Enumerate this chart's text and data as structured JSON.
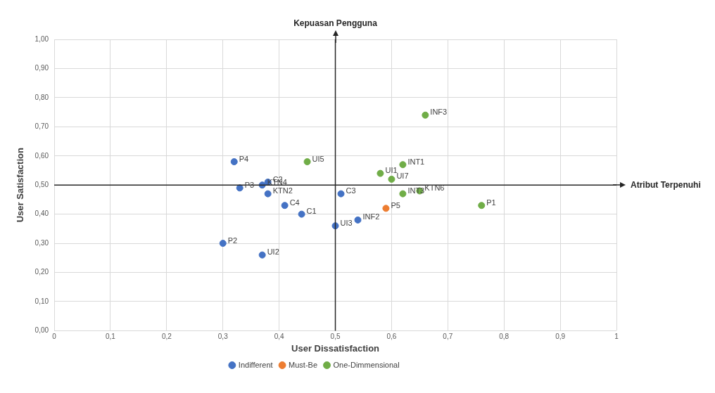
{
  "chart_data": {
    "type": "scatter",
    "xlabel": "User Dissatisfaction",
    "ylabel": "User Satisfaction",
    "xlim": [
      0,
      1
    ],
    "ylim": [
      0,
      1
    ],
    "xticks": [
      0,
      {
        "value": 0.1,
        "label": "0,1"
      },
      {
        "value": 0.2,
        "label": "0,2"
      },
      {
        "value": 0.3,
        "label": "0,3"
      },
      {
        "value": 0.4,
        "label": "0,4"
      },
      {
        "value": 0.5,
        "label": "0,5"
      },
      {
        "value": 0.6,
        "label": "0,6"
      },
      {
        "value": 0.7,
        "label": "0,7"
      },
      {
        "value": 0.8,
        "label": "0,8"
      },
      {
        "value": 0.9,
        "label": "0,9"
      },
      1
    ],
    "yticks": [
      {
        "value": 0,
        "label": "0,00"
      },
      {
        "value": 0.1,
        "label": "0,10"
      },
      {
        "value": 0.2,
        "label": "0,20"
      },
      {
        "value": 0.3,
        "label": "0,30"
      },
      {
        "value": 0.4,
        "label": "0,40"
      },
      {
        "value": 0.5,
        "label": "0,50"
      },
      {
        "value": 0.6,
        "label": "0,60"
      },
      {
        "value": 0.7,
        "label": "0,70"
      },
      {
        "value": 0.8,
        "label": "0,80"
      },
      {
        "value": 0.9,
        "label": "0,90"
      },
      {
        "value": 1,
        "label": "1,00"
      }
    ],
    "grid": true,
    "legend": "bottom",
    "marker": "circle",
    "series": [
      {
        "name": "Indifferent",
        "color": "#4472c4",
        "x": [
          0.32,
          0.33,
          0.37,
          0.38,
          0.38,
          0.41,
          0.44,
          0.51,
          0.5,
          0.54,
          0.3,
          0.37
        ],
        "values": [
          0.58,
          0.49,
          0.5,
          0.51,
          0.47,
          0.43,
          0.4,
          0.47,
          0.36,
          0.38,
          0.3,
          0.26
        ]
      },
      {
        "name": "Must-Be",
        "color": "#ed7d31",
        "x": [
          0.59
        ],
        "values": [
          0.42
        ]
      },
      {
        "name": "One-Dimmensional",
        "color": "#70ad47",
        "x": [
          0.45,
          0.66,
          0.62,
          0.58,
          0.6,
          0.62,
          0.65,
          0.76
        ],
        "values": [
          0.58,
          0.74,
          0.57,
          0.54,
          0.52,
          0.47,
          0.48,
          0.43
        ]
      }
    ],
    "ref_lines": [
      {
        "axis": "x",
        "value": 0.5,
        "label": "Kepuasan Pengguna",
        "color": "#262626"
      },
      {
        "axis": "y",
        "value": 0.5,
        "label": "Atribut Terpenuhi",
        "color": "#262626"
      }
    ],
    "annotations": [
      {
        "text": "P4",
        "x": 0.32,
        "y": 0.58
      },
      {
        "text": "P3",
        "x": 0.33,
        "y": 0.49
      },
      {
        "text": "KTN4",
        "x": 0.37,
        "y": 0.5
      },
      {
        "text": "C2",
        "x": 0.38,
        "y": 0.51
      },
      {
        "text": "KTN2",
        "x": 0.38,
        "y": 0.47
      },
      {
        "text": "C4",
        "x": 0.41,
        "y": 0.43
      },
      {
        "text": "C1",
        "x": 0.44,
        "y": 0.4
      },
      {
        "text": "C3",
        "x": 0.51,
        "y": 0.47
      },
      {
        "text": "UI3",
        "x": 0.5,
        "y": 0.36
      },
      {
        "text": "INF2",
        "x": 0.54,
        "y": 0.38
      },
      {
        "text": "P2",
        "x": 0.3,
        "y": 0.3
      },
      {
        "text": "UI2",
        "x": 0.37,
        "y": 0.26
      },
      {
        "text": "P5",
        "x": 0.59,
        "y": 0.42
      },
      {
        "text": "UI5",
        "x": 0.45,
        "y": 0.58
      },
      {
        "text": "INF3",
        "x": 0.66,
        "y": 0.74
      },
      {
        "text": "INT1",
        "x": 0.62,
        "y": 0.57
      },
      {
        "text": "UI1",
        "x": 0.58,
        "y": 0.54
      },
      {
        "text": "UI7",
        "x": 0.6,
        "y": 0.52
      },
      {
        "text": "INT3",
        "x": 0.62,
        "y": 0.47
      },
      {
        "text": "KTN6",
        "x": 0.65,
        "y": 0.48
      },
      {
        "text": "P1",
        "x": 0.76,
        "y": 0.43
      }
    ]
  }
}
